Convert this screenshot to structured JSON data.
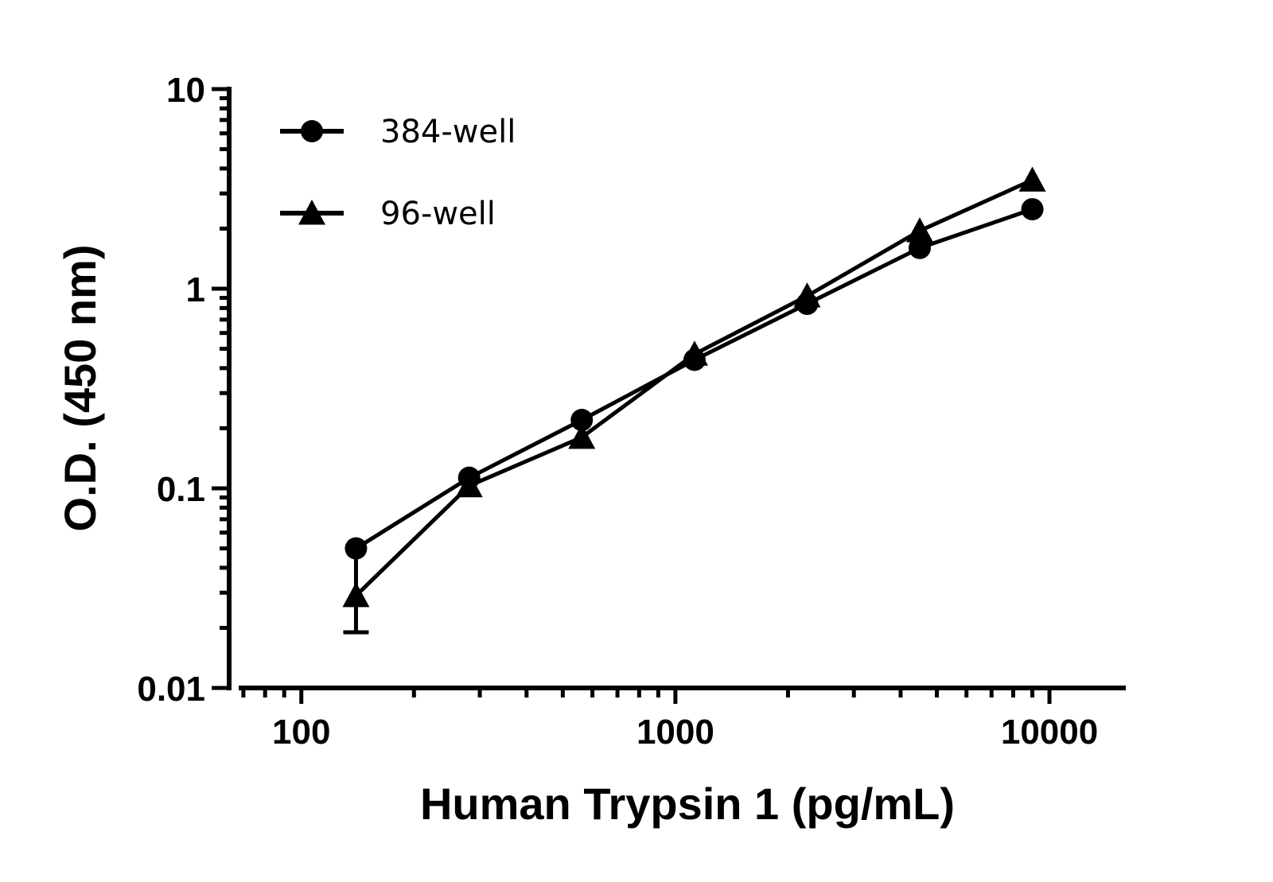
{
  "chart_data": {
    "type": "line",
    "title": "",
    "xlabel": "Human Trypsin 1 (pg/mL)",
    "ylabel": "O.D. (450 nm)",
    "xscale": "log",
    "yscale": "log",
    "xlim": [
      68,
      16000
    ],
    "ylim": [
      0.01,
      10
    ],
    "xticks": [
      {
        "value": 100,
        "label": "100"
      },
      {
        "value": 1000,
        "label": "1000"
      },
      {
        "value": 10000,
        "label": "10000"
      }
    ],
    "yticks": [
      {
        "value": 0.01,
        "label": "0.01"
      },
      {
        "value": 0.1,
        "label": "0.1"
      },
      {
        "value": 1,
        "label": "1"
      },
      {
        "value": 10,
        "label": "10"
      }
    ],
    "legend_position": "top-left",
    "color": "#000000",
    "series": [
      {
        "name": "384-well",
        "marker": "circle",
        "points": [
          {
            "x": 140,
            "y": 0.05
          },
          {
            "x": 281,
            "y": 0.113
          },
          {
            "x": 562,
            "y": 0.22
          },
          {
            "x": 1125,
            "y": 0.44
          },
          {
            "x": 2250,
            "y": 0.84
          },
          {
            "x": 4500,
            "y": 1.6
          },
          {
            "x": 9000,
            "y": 2.5
          }
        ]
      },
      {
        "name": "96-well",
        "marker": "triangle",
        "points": [
          {
            "x": 140,
            "y": 0.029,
            "err_low": 0.019,
            "err_high": 0.045
          },
          {
            "x": 281,
            "y": 0.103
          },
          {
            "x": 562,
            "y": 0.18
          },
          {
            "x": 1125,
            "y": 0.47
          },
          {
            "x": 2250,
            "y": 0.92
          },
          {
            "x": 4500,
            "y": 1.95
          },
          {
            "x": 9000,
            "y": 3.5
          }
        ]
      }
    ]
  }
}
